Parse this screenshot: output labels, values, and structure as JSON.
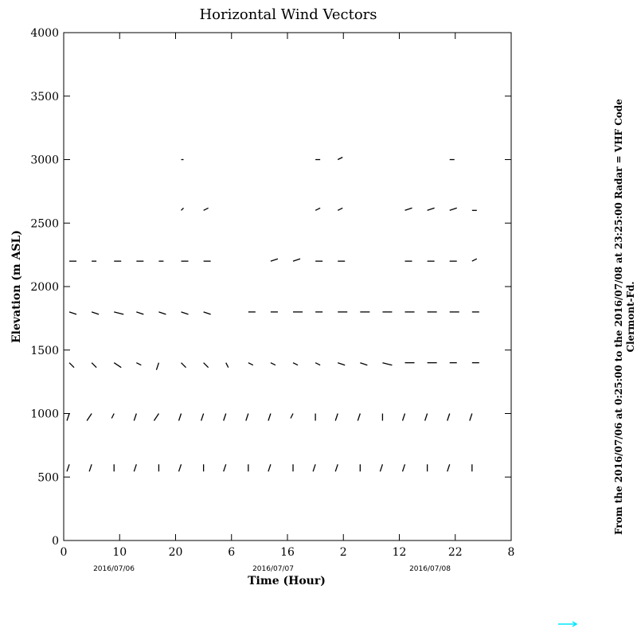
{
  "chart_data": {
    "type": "quiver",
    "title": "Horizontal Wind Vectors",
    "xlabel": "Time (Hour)",
    "ylabel": "Elevation (m ASL)",
    "date_labels": [
      "2016/07/06",
      "2016/07/07",
      "2016/07/08"
    ],
    "side_text": [
      "From the 2016/07/06 at  0:25:00 to the 2016/07/08 at 23:25:00 Radar = VHF Code",
      "Clermont-Fd."
    ],
    "xlim": [
      0,
      80
    ],
    "ylim": [
      0,
      4000
    ],
    "xticks": [
      0,
      10,
      20,
      {
        "value": 30,
        "label": "6"
      },
      {
        "value": 40,
        "label": "16"
      },
      {
        "value": 50,
        "label": "2"
      },
      {
        "value": 60,
        "label": "12"
      },
      {
        "value": 70,
        "label": "22"
      },
      {
        "value": 80,
        "label": "8"
      }
    ],
    "yticks": [
      0,
      500,
      1000,
      1500,
      2000,
      2500,
      3000,
      3500,
      4000
    ],
    "color": "#000000",
    "x": [
      1,
      1,
      1,
      1,
      1,
      5,
      5,
      5,
      5,
      5,
      9,
      9,
      9,
      9,
      9,
      13,
      13,
      13,
      13,
      13,
      17,
      17,
      17,
      17,
      17,
      21,
      21,
      21,
      21,
      21,
      21,
      21,
      25,
      25,
      25,
      25,
      25,
      25,
      29,
      29,
      29,
      33,
      33,
      33,
      33,
      37,
      37,
      37,
      37,
      37,
      41,
      41,
      41,
      41,
      41,
      45,
      45,
      45,
      45,
      45,
      45,
      45,
      49,
      49,
      49,
      49,
      49,
      49,
      49,
      53,
      53,
      53,
      53,
      57,
      57,
      57,
      57,
      61,
      61,
      61,
      61,
      61,
      61,
      65,
      65,
      65,
      65,
      65,
      65,
      69,
      69,
      69,
      69,
      69,
      69,
      69,
      73,
      73,
      73,
      73,
      73,
      73
    ],
    "y": [
      600,
      1000,
      1400,
      1800,
      2200,
      600,
      1000,
      1400,
      1800,
      2200,
      600,
      1000,
      1400,
      1800,
      2200,
      600,
      1000,
      1400,
      1800,
      2200,
      600,
      1000,
      1400,
      1800,
      2200,
      600,
      1000,
      1400,
      1800,
      2200,
      2600,
      3000,
      600,
      1000,
      1400,
      1800,
      2200,
      2600,
      600,
      1000,
      1400,
      600,
      1000,
      1400,
      1800,
      600,
      1000,
      1400,
      1800,
      2200,
      600,
      1000,
      1400,
      1800,
      2200,
      600,
      1000,
      1400,
      1800,
      2200,
      2600,
      3000,
      600,
      1000,
      1400,
      1800,
      2200,
      2600,
      3000,
      600,
      1000,
      1400,
      1800,
      600,
      1000,
      1400,
      1800,
      600,
      1000,
      1400,
      1800,
      2200,
      2600,
      600,
      1000,
      1400,
      1800,
      2200,
      2600,
      600,
      1000,
      1400,
      1800,
      2200,
      2600,
      3000,
      600,
      1000,
      1400,
      1800,
      2200,
      2600
    ],
    "u": [
      -1,
      -1,
      2,
      3,
      3,
      -1,
      -2,
      2,
      3,
      2,
      0,
      -1,
      3,
      4,
      3,
      -1,
      -1,
      2,
      3,
      3,
      0,
      -2,
      -1,
      3,
      2,
      -1,
      -1,
      2,
      3,
      3,
      1,
      1,
      0,
      -1,
      2,
      3,
      3,
      2,
      -1,
      -1,
      1,
      0,
      -1,
      2,
      3,
      -1,
      -1,
      2,
      3,
      3,
      0,
      -1,
      2,
      4,
      3,
      -1,
      0,
      2,
      3,
      3,
      2,
      2,
      -1,
      -1,
      3,
      4,
      3,
      2,
      2,
      0,
      -1,
      3,
      4,
      -1,
      0,
      4,
      4,
      -1,
      -1,
      4,
      4,
      3,
      3,
      0,
      -1,
      4,
      4,
      3,
      3,
      -1,
      -1,
      3,
      4,
      3,
      3,
      2,
      0,
      -1,
      3,
      3,
      2,
      2
    ],
    "v": [
      -3,
      -3,
      -2,
      -1,
      0,
      -3,
      -3,
      -2,
      -1,
      0,
      -3,
      -2,
      -2,
      -1,
      0,
      -3,
      -3,
      -1,
      -1,
      0,
      -3,
      -3,
      -3,
      -1,
      0,
      -3,
      -3,
      -2,
      -1,
      0,
      1,
      0,
      -3,
      -3,
      -2,
      -1,
      0,
      1,
      -3,
      -3,
      -2,
      -3,
      -3,
      -1,
      0,
      -3,
      -3,
      -1,
      0,
      1,
      -3,
      -2,
      -1,
      0,
      1,
      -3,
      -3,
      -1,
      0,
      0,
      1,
      0,
      -3,
      -3,
      -1,
      0,
      0,
      1,
      1,
      -3,
      -3,
      -1,
      0,
      -3,
      -3,
      -1,
      0,
      -3,
      -3,
      0,
      0,
      0,
      1,
      -3,
      -3,
      0,
      0,
      0,
      1,
      -3,
      -3,
      0,
      0,
      0,
      1,
      0,
      -3,
      -3,
      0,
      0,
      1,
      0
    ]
  }
}
